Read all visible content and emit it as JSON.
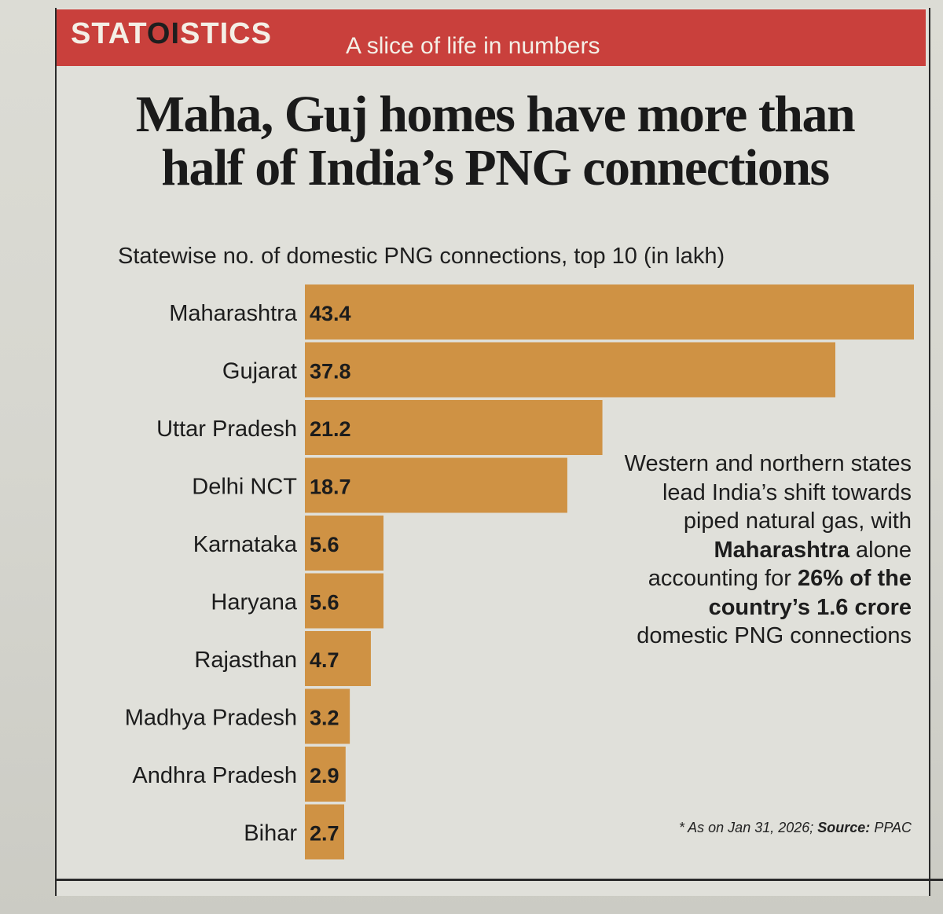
{
  "header": {
    "brand_pre": "STAT",
    "brand_mid": "OI",
    "brand_post": "STICS",
    "tagline": "A slice of life in numbers"
  },
  "headline": {
    "line1": "Maha, Guj homes have more than",
    "line2": "half of India’s PNG connections"
  },
  "colors": {
    "banner": "#c9403c",
    "bar": "#cf9244"
  },
  "note": {
    "t1": "Western and northern states lead India’s shift towards piped natural gas, with ",
    "b1": "Maharashtra",
    "t2": " alone accounting for ",
    "b2": "26% of the country’s 1.6 crore",
    "t3": " domestic PNG connections"
  },
  "source": {
    "prefix": "* As on Jan 31, 2026; ",
    "label": "Source:",
    "value": " PPAC"
  },
  "chart_data": {
    "type": "bar",
    "orientation": "horizontal",
    "title": "Statewise no. of domestic PNG connections, top 10 (in lakh)",
    "categories": [
      "Maharashtra",
      "Gujarat",
      "Uttar Pradesh",
      "Delhi NCT",
      "Karnataka",
      "Haryana",
      "Rajasthan",
      "Madhya Pradesh",
      "Andhra Pradesh",
      "Bihar"
    ],
    "values": [
      43.4,
      37.8,
      21.2,
      18.7,
      5.6,
      5.6,
      4.7,
      3.2,
      2.9,
      2.7
    ],
    "value_labels": [
      "43.4",
      "37.8",
      "21.2",
      "18.7",
      "5.6",
      "5.6",
      "4.7",
      "3.2",
      "2.9",
      "2.7"
    ],
    "xlim": [
      0,
      43.4
    ],
    "xlabel": "",
    "ylabel": "",
    "grid": false
  }
}
